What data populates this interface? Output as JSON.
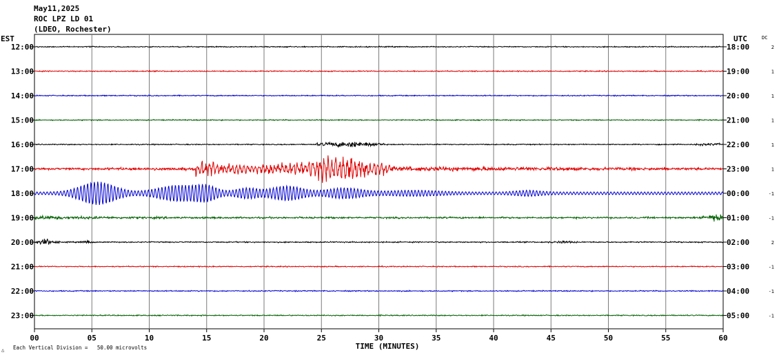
{
  "header": {
    "date": "May11,2025",
    "station": "ROC LPZ LD 01",
    "network": "(LDEO, Rochester)"
  },
  "labels": {
    "left_timezone": "EST",
    "right_timezone": "UTC",
    "dc_header": "DC",
    "x_title": "TIME (MINUTES)",
    "footer_mark": "△",
    "footer_scale": "Each Vertical Division =   50.00 microvolts"
  },
  "colors": {
    "cycle": [
      "#000000",
      "#e00000",
      "#0000d0",
      "#006000"
    ],
    "grid": "#7a7a7a"
  },
  "chart_data": {
    "type": "line",
    "subtype": "helicorder",
    "title": "May11,2025",
    "xlabel": "TIME (MINUTES)",
    "xlim": [
      0,
      60
    ],
    "xticks": [
      "00",
      "05",
      "10",
      "15",
      "20",
      "25",
      "30",
      "35",
      "40",
      "45",
      "50",
      "55",
      "60"
    ],
    "vertical_division_microvolts": 50.0,
    "grid": true,
    "rows": [
      {
        "est": "12:00",
        "utc": "18:00",
        "dc": "2",
        "color": "#000000",
        "activity": "background noise"
      },
      {
        "est": "13:00",
        "utc": "19:00",
        "dc": "1",
        "color": "#e00000",
        "activity": "background noise"
      },
      {
        "est": "14:00",
        "utc": "20:00",
        "dc": "1",
        "color": "#0000d0",
        "activity": "background noise"
      },
      {
        "est": "15:00",
        "utc": "21:00",
        "dc": "1",
        "color": "#006000",
        "activity": "background noise"
      },
      {
        "est": "16:00",
        "utc": "22:00",
        "dc": "1",
        "color": "#000000",
        "activity": "earthquake P-wave onset near minute 25"
      },
      {
        "est": "17:00",
        "utc": "23:00",
        "dc": "1",
        "color": "#e00000",
        "activity": "earthquake arrivals, peak amplitude minutes 25-30"
      },
      {
        "est": "18:00",
        "utc": "00:00",
        "dc": "-1",
        "color": "#0000d0",
        "activity": "large surface-wave packets minutes 2-28"
      },
      {
        "est": "19:00",
        "utc": "01:00",
        "dc": "-1",
        "color": "#006000",
        "activity": "decaying coda, burst near minute 59"
      },
      {
        "est": "20:00",
        "utc": "02:00",
        "dc": "2",
        "color": "#000000",
        "activity": "small burst near minute 1"
      },
      {
        "est": "21:00",
        "utc": "03:00",
        "dc": "-1",
        "color": "#e00000",
        "activity": "background noise"
      },
      {
        "est": "22:00",
        "utc": "04:00",
        "dc": "-1",
        "color": "#0000d0",
        "activity": "background noise"
      },
      {
        "est": "23:00",
        "utc": "05:00",
        "dc": "-1",
        "color": "#006000",
        "activity": "background noise"
      }
    ]
  }
}
